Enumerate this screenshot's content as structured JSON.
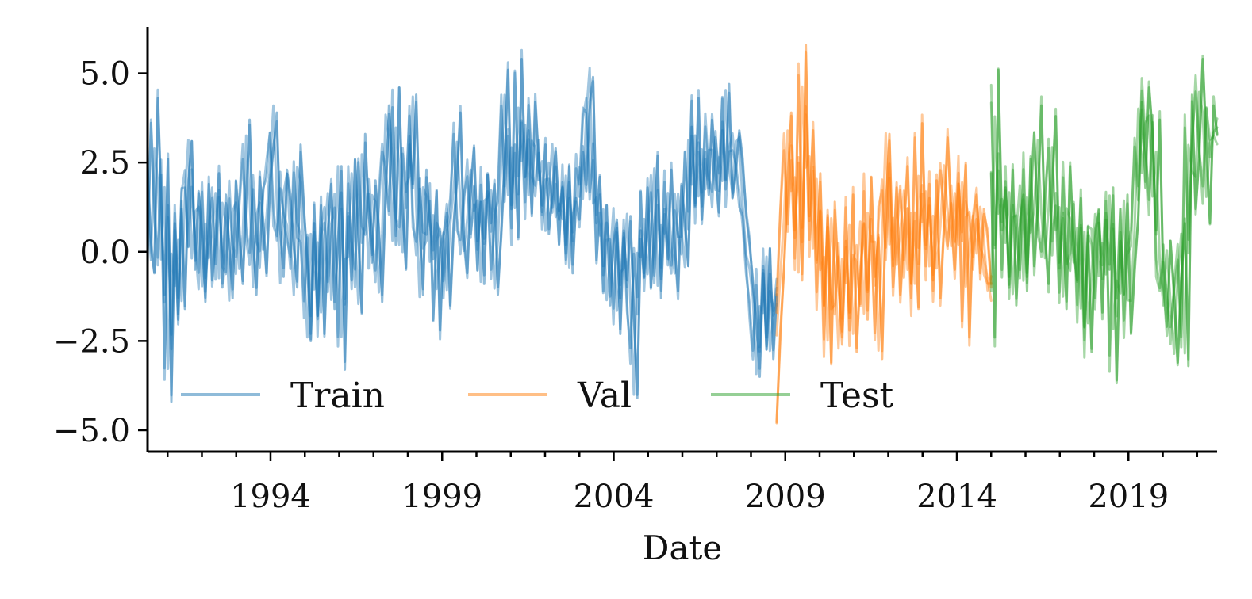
{
  "chart_data": {
    "type": "line",
    "title": "",
    "xlabel": "Date",
    "ylabel": "",
    "x_range": [
      "1990-06-01",
      "2021-08-01"
    ],
    "ylim": [
      -5.6,
      6.3
    ],
    "yticks": [
      -5.0,
      -2.5,
      0.0,
      2.5,
      5.0
    ],
    "ytick_labels": [
      "−5.0",
      "−2.5",
      "0.0",
      "2.5",
      "5.0"
    ],
    "xtick_labels": [
      "1994",
      "1999",
      "2004",
      "2009",
      "2014",
      "2019"
    ],
    "grid": false,
    "legend": {
      "placement": "lower-left",
      "columns": 3
    },
    "series": [
      {
        "name": "Train",
        "color": "#1f77b4",
        "x_start": "1990-06-01",
        "x_end": "2008-10-01",
        "values": [
          2.4,
          0.3,
          -0.6,
          4.3,
          1.5,
          -1.2,
          2.6,
          -4.2,
          0.8,
          -1.9,
          1.2,
          -1.6,
          2.0,
          3.1,
          -0.5,
          1.7,
          0.6,
          -1.4,
          1.9,
          -0.8,
          0.4,
          2.2,
          -1.0,
          1.6,
          0.2,
          -1.3,
          2.0,
          0.7,
          -0.9,
          1.4,
          3.7,
          0.5,
          -1.2,
          2.1,
          0.9,
          -0.6,
          1.8,
          2.9,
          3.9,
          0.6,
          -0.7,
          2.3,
          1.6,
          0.1,
          -1.0,
          3.0,
          1.2,
          -0.4,
          -2.5,
          0.8,
          -1.8,
          1.3,
          -2.3,
          0.6,
          1.9,
          -1.6,
          0.3,
          2.4,
          -3.3,
          1.0,
          -0.8,
          2.6,
          0.4,
          -1.7,
          3.3,
          1.1,
          -0.3,
          2.0,
          0.7,
          -1.4,
          1.5,
          4.1,
          2.5,
          0.2,
          4.6,
          1.3,
          -0.5,
          3.0,
          1.9,
          4.4,
          0.6,
          -1.2,
          2.3,
          0.9,
          -0.2,
          1.7,
          -2.2,
          0.4,
          1.1,
          -1.5,
          0.8,
          2.0,
          3.9,
          0.5,
          -0.6,
          1.6,
          2.9,
          0.3,
          1.4,
          -0.9,
          2.2,
          0.8,
          1.9,
          -1.2,
          0.6,
          2.5,
          5.1,
          1.2,
          3.0,
          0.4,
          5.4,
          2.1,
          3.4,
          1.0,
          4.2,
          2.6,
          1.3,
          3.0,
          0.5,
          1.7,
          2.9,
          0.9,
          1.8,
          0.2,
          2.4,
          -0.6,
          1.5,
          0.9,
          2.8,
          1.7,
          4.2,
          4.9,
          0.8,
          2.1,
          -0.4,
          1.3,
          -1.5,
          0.3,
          0.9,
          -2.3,
          0.4,
          -0.8,
          1.0,
          -1.8,
          -4.1,
          0.6,
          -0.7,
          1.8,
          -1.0,
          0.5,
          2.7,
          -1.3,
          1.2,
          -0.2,
          2.3,
          0.1,
          -1.1,
          1.9,
          0.7,
          -0.4,
          3.5,
          1.3,
          4.3,
          0.9,
          2.8,
          1.6,
          3.7,
          2.4,
          1.1,
          3.4,
          2.0,
          4.7,
          1.5,
          2.2,
          3.4,
          2.6,
          1.0,
          0.2,
          -0.8,
          -1.9,
          -3.5,
          -0.6,
          -2.4,
          0.1,
          -3.0,
          -1.2
        ]
      },
      {
        "name": "Val",
        "color": "#ff7f0e",
        "x_start": "2008-10-01",
        "x_end": "2015-01-01",
        "values": [
          -4.8,
          -2.2,
          -0.5,
          1.8,
          3.9,
          0.6,
          2.5,
          -0.8,
          5.8,
          1.0,
          3.4,
          -0.3,
          2.2,
          -1.5,
          0.7,
          -3.1,
          1.4,
          -0.9,
          -2.6,
          0.3,
          -1.7,
          1.6,
          -2.8,
          -0.5,
          0.8,
          -1.9,
          2.1,
          -0.7,
          0.4,
          -3.0,
          1.2,
          3.3,
          -0.4,
          1.8,
          -1.2,
          0.6,
          2.4,
          -0.9,
          1.1,
          -1.6,
          3.6,
          0.2,
          1.5,
          -0.8,
          2.0,
          -1.3,
          0.7,
          3.2,
          1.0,
          -0.5,
          1.9,
          0.3,
          2.5,
          -2.4,
          0.9,
          1.6,
          -0.6,
          1.2,
          0.4,
          -1.0
        ]
      },
      {
        "name": "Test",
        "color": "#2ca02c",
        "x_start": "2015-01-01",
        "x_end": "2021-08-01",
        "values": [
          2.2,
          -2.4,
          5.1,
          0.6,
          1.8,
          -0.7,
          2.3,
          -1.5,
          0.9,
          1.6,
          -1.1,
          2.6,
          -0.4,
          1.3,
          4.1,
          0.5,
          -0.9,
          1.7,
          3.8,
          -0.3,
          1.1,
          -1.6,
          2.4,
          0.2,
          -0.8,
          1.5,
          -2.1,
          0.7,
          -2.8,
          0.4,
          1.2,
          -1.7,
          0.9,
          -0.5,
          1.8,
          -3.6,
          0.3,
          -1.2,
          1.6,
          -2.3,
          -0.6,
          1.0,
          4.2,
          1.8,
          4.6,
          3.4,
          0.6,
          3.7,
          -0.9,
          -2.1,
          0.3,
          -1.3,
          -3.1,
          -0.7,
          0.8,
          -3.2,
          4.4,
          1.2,
          2.6,
          5.4,
          3.1,
          0.8,
          4.1,
          3.3
        ]
      }
    ]
  }
}
